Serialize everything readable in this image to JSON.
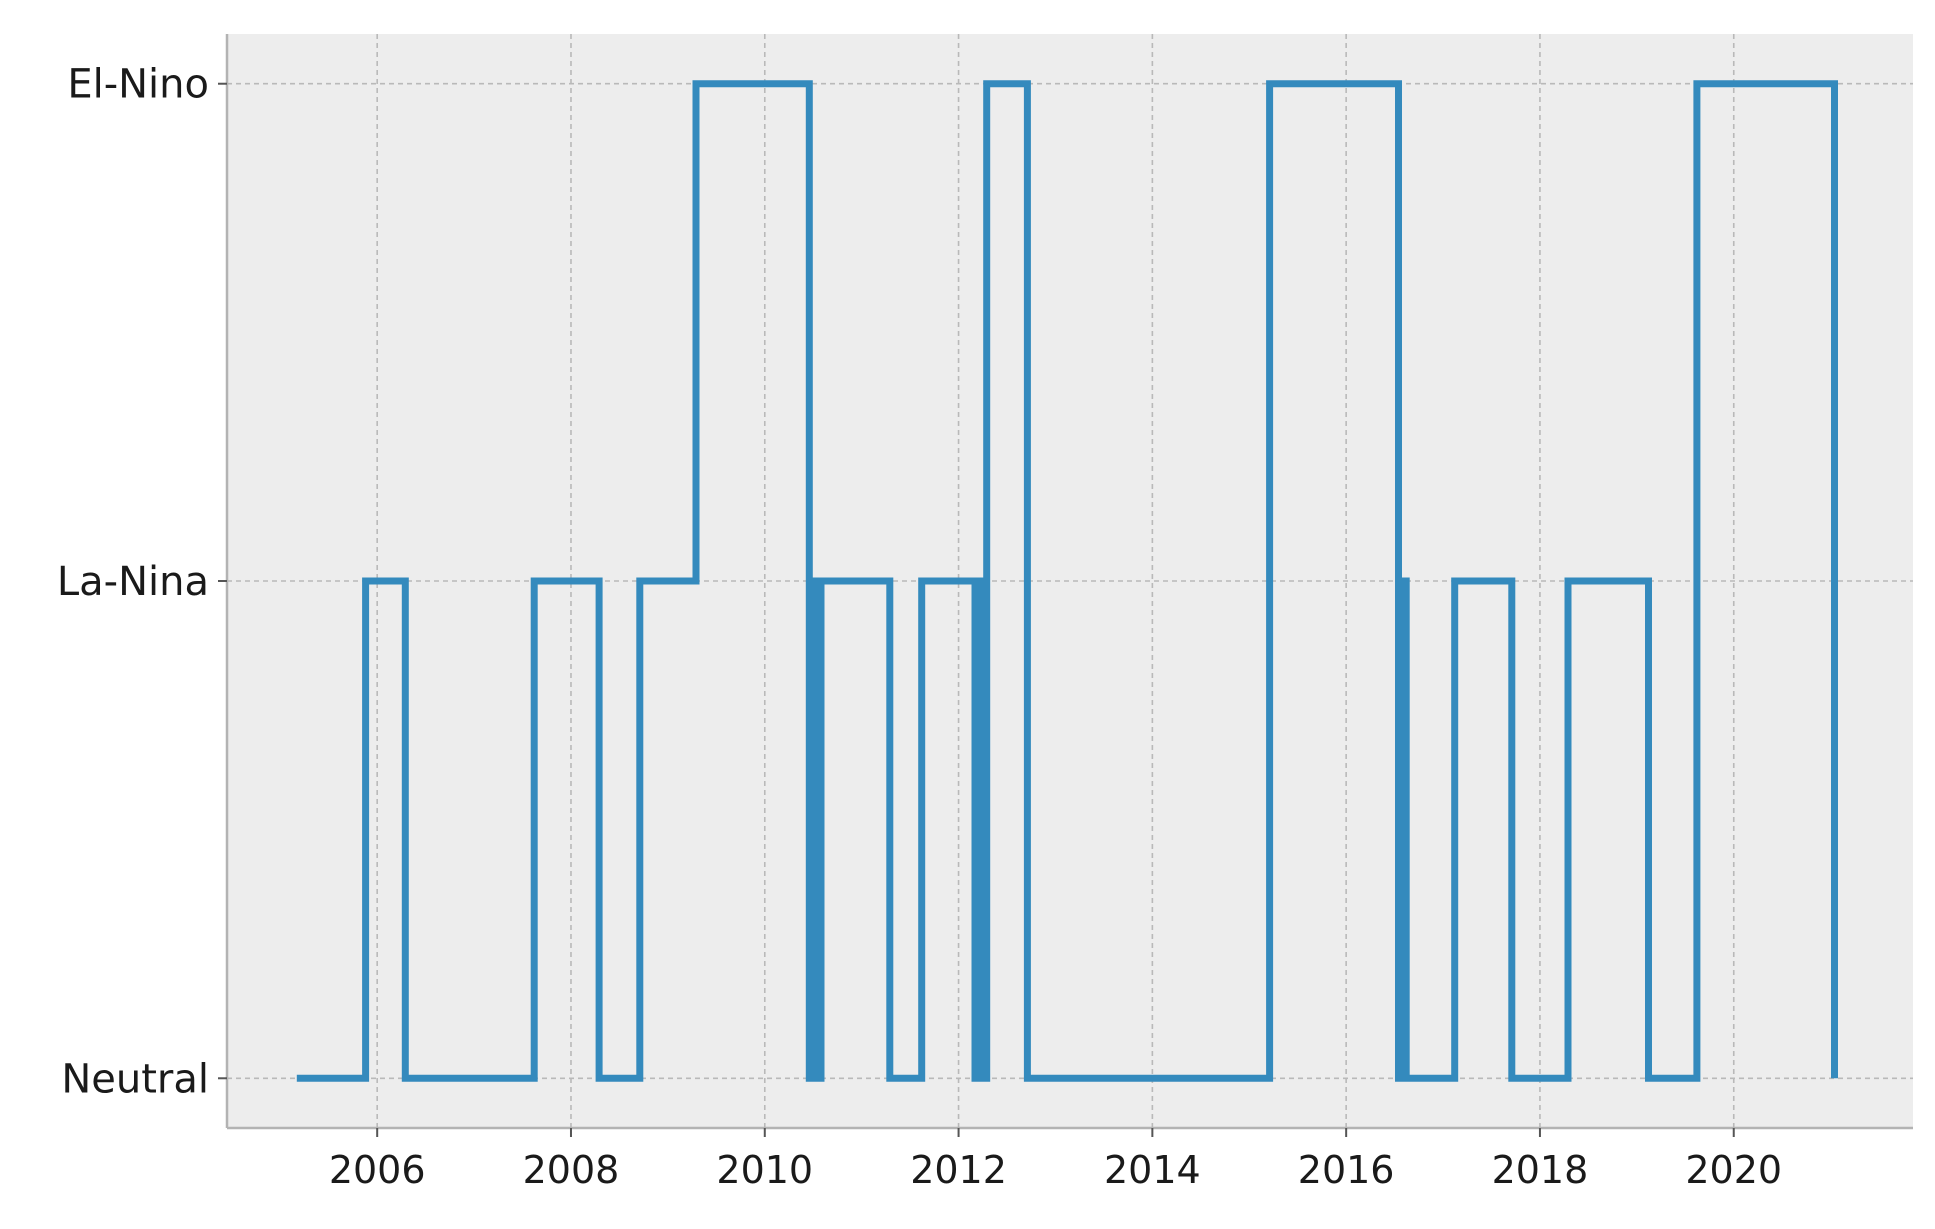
{
  "chart_data": {
    "type": "line",
    "step": "post",
    "x_unit": "year",
    "y_categories": [
      "Neutral",
      "La-Nina",
      "El-Nino"
    ],
    "xlim": [
      2004.45,
      2021.85
    ],
    "ylim": [
      -0.1,
      2.1
    ],
    "x_ticks": [
      2006,
      2008,
      2010,
      2012,
      2014,
      2016,
      2018,
      2020
    ],
    "x_tick_labels": [
      "2006",
      "2008",
      "2010",
      "2012",
      "2014",
      "2016",
      "2018",
      "2020"
    ],
    "grid": true,
    "legend": "none",
    "colors": {
      "line": "#348ABD",
      "background": "#EDEDED",
      "grid": "#b9b9b9",
      "spine": "#b3b3b3"
    },
    "series": [
      {
        "x": [
          2005.17,
          2005.88,
          2006.29,
          2007.62,
          2008.29,
          2008.71,
          2009.29,
          2010.46,
          2010.5,
          2010.54,
          2010.58,
          2011.29,
          2011.62,
          2012.17,
          2012.21,
          2012.25,
          2012.29,
          2012.71,
          2015.21,
          2016.54,
          2016.58,
          2016.62,
          2017.12,
          2017.71,
          2018.29,
          2019.12,
          2019.62,
          2021.04
        ],
        "y": [
          0,
          1,
          0,
          1,
          0,
          1,
          2,
          0,
          1,
          0,
          1,
          0,
          1,
          0,
          1,
          0,
          2,
          0,
          2,
          0,
          1,
          0,
          1,
          0,
          1,
          0,
          2,
          0
        ]
      }
    ]
  }
}
